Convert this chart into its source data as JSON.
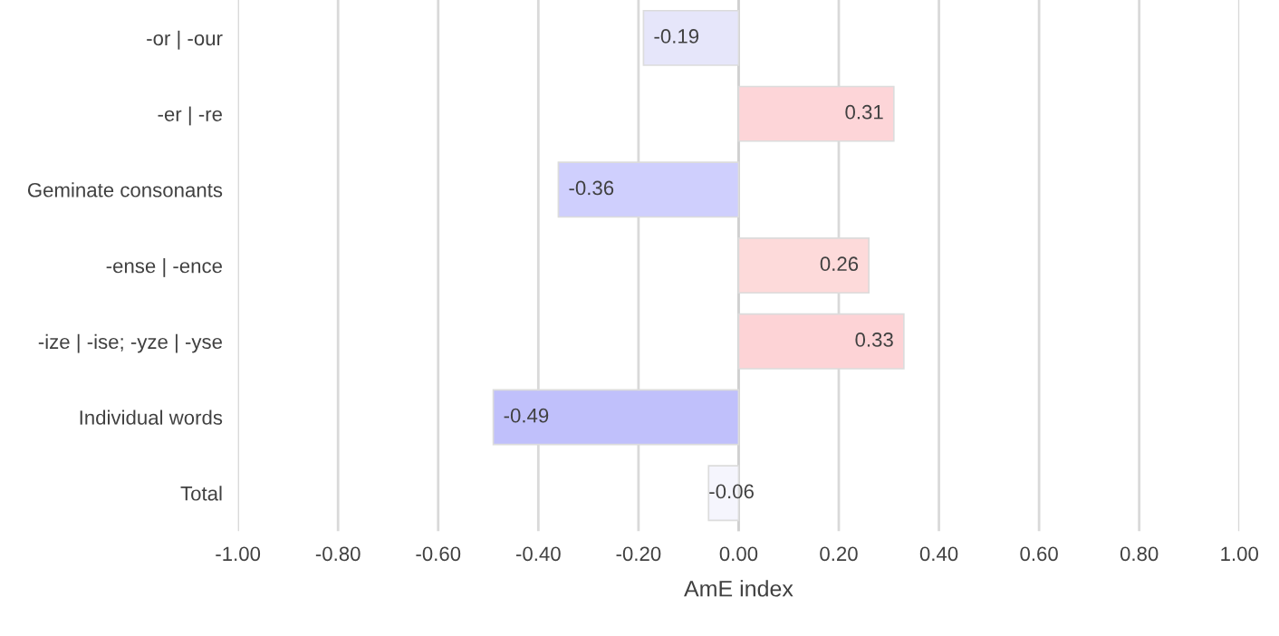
{
  "chart_data": {
    "type": "bar",
    "orientation": "horizontal",
    "xlabel": "AmE index",
    "categories": [
      "-or | -our",
      "-er | -re",
      "Geminate consonants",
      "-ense | -ence",
      "-ize | -ise; -yze | -yse",
      "Individual words",
      "Total"
    ],
    "values": [
      -0.19,
      0.31,
      -0.36,
      0.26,
      0.33,
      -0.49,
      -0.06
    ],
    "colors": [
      "#e6e6fa",
      "#fdd5d8",
      "#cfcffd",
      "#fddada",
      "#fdd3d6",
      "#c0c0fb",
      "#f5f5fd"
    ],
    "value_labels": [
      "-0.19",
      "0.31",
      "-0.36",
      "0.26",
      "0.33",
      "-0.49",
      "-0.06"
    ],
    "xlim": [
      -1.0,
      1.0
    ],
    "xticks": [
      {
        "value": -1.0,
        "label": "-1.00"
      },
      {
        "value": -0.8,
        "label": "-0.80"
      },
      {
        "value": -0.6,
        "label": "-0.60"
      },
      {
        "value": -0.4,
        "label": "-0.40"
      },
      {
        "value": -0.2,
        "label": "-0.20"
      },
      {
        "value": 0.0,
        "label": "0.00"
      },
      {
        "value": 0.2,
        "label": "0.20"
      },
      {
        "value": 0.4,
        "label": "0.40"
      },
      {
        "value": 0.6,
        "label": "0.60"
      },
      {
        "value": 0.8,
        "label": "0.80"
      },
      {
        "value": 1.0,
        "label": "1.00"
      }
    ],
    "grid": "x"
  }
}
